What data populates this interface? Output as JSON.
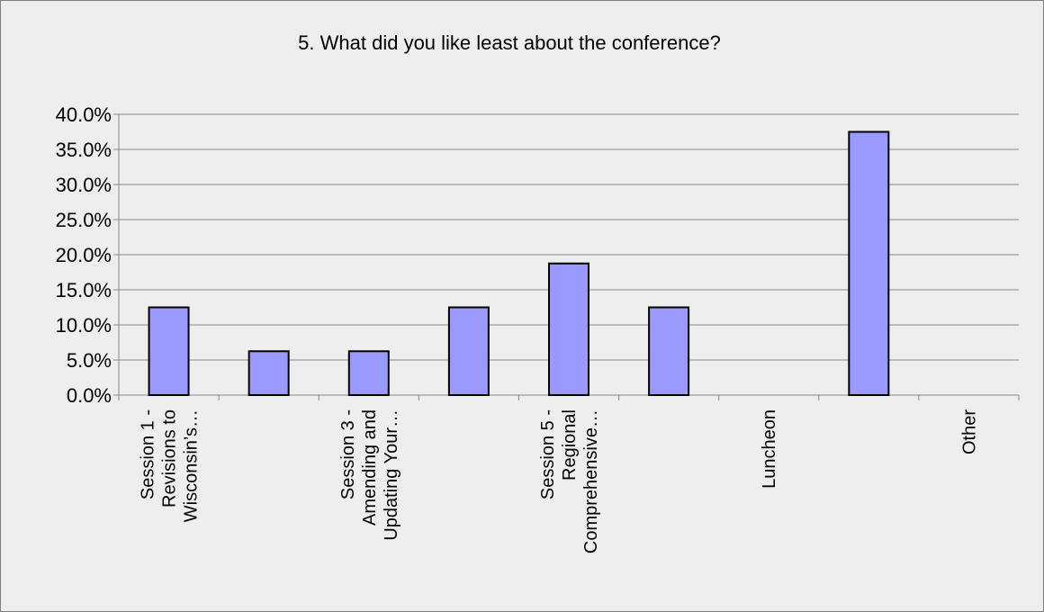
{
  "chart_data": {
    "type": "bar",
    "title": "5. What did you like least about the conference?",
    "xlabel": "",
    "ylabel": "",
    "ylim": [
      0,
      40
    ],
    "yticks": [
      "0.0%",
      "5.0%",
      "10.0%",
      "15.0%",
      "20.0%",
      "25.0%",
      "30.0%",
      "35.0%",
      "40.0%"
    ],
    "categories": [
      [
        "Session 1 -",
        "Revisions to",
        "Wisconsin’s…"
      ],
      [],
      [
        "Session 3 -",
        "Amending and",
        "Updating Your…"
      ],
      [],
      [
        "Session 5 -",
        "Regional",
        "Comprehensive…"
      ],
      [],
      [
        "Luncheon"
      ],
      [],
      [
        "Other"
      ]
    ],
    "values": [
      12.5,
      6.25,
      6.25,
      12.5,
      18.75,
      12.5,
      0,
      37.5,
      0
    ],
    "grid": true,
    "legend": "none",
    "colors": {
      "bar_fill": "#9999ff",
      "bar_stroke": "#000000",
      "grid": "#888888",
      "background": "#eeeeee"
    }
  }
}
